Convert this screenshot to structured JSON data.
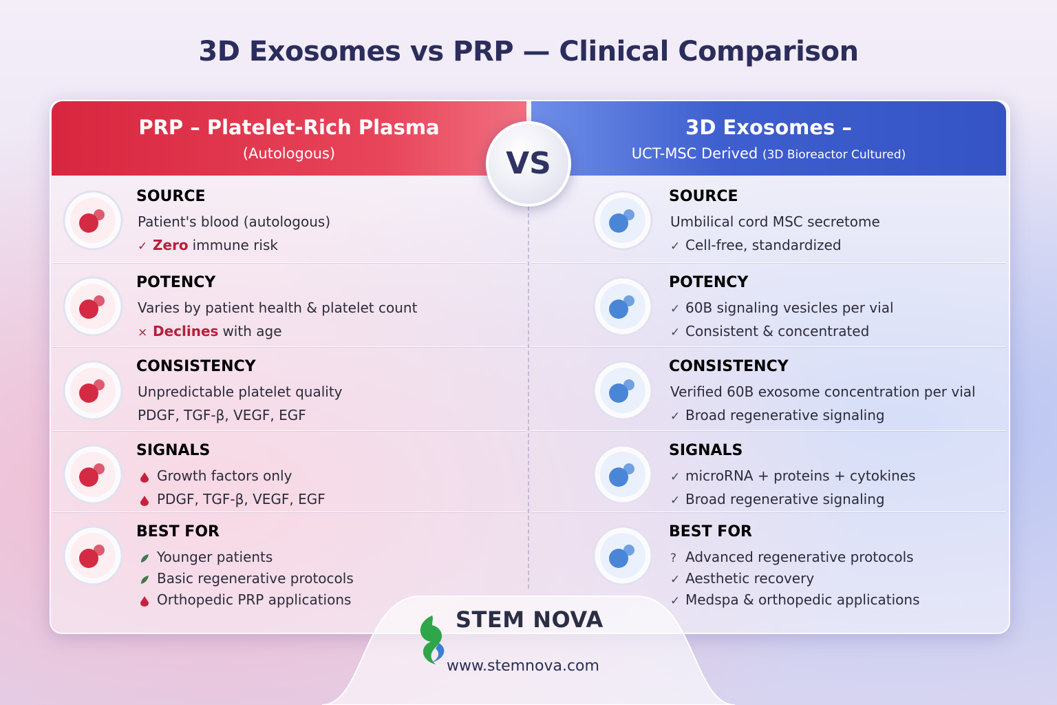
{
  "title": "3D Exosomes vs PRP — Clinical Comparison",
  "vs": "VS",
  "left": {
    "title": "PRP – Platelet-Rich Plasma",
    "subtitle": "(Autologous)",
    "rows": [
      {
        "label": "SOURCE",
        "lines": [
          {
            "text": "Patient's blood (autologous)"
          },
          {
            "mark": "✓",
            "emphasis": "Zero",
            "text": "immune risk"
          }
        ]
      },
      {
        "label": "POTENCY",
        "lines": [
          {
            "text": "Varies by patient health & platelet count"
          },
          {
            "mark": "×",
            "emphasis": "Declines",
            "text": "with age"
          }
        ]
      },
      {
        "label": "CONSISTENCY",
        "lines": [
          {
            "text": "Unpredictable platelet quality"
          },
          {
            "text": "PDGF, TGF-β, VEGF, EGF"
          }
        ]
      },
      {
        "label": "SIGNALS",
        "lines": [
          {
            "text": "Growth factors only"
          },
          {
            "text": "PDGF, TGF-β, VEGF, EGF"
          }
        ]
      },
      {
        "label": "BEST FOR",
        "lines": [
          {
            "text": "Younger patients"
          },
          {
            "text": "Basic regenerative protocols"
          },
          {
            "text": "Orthopedic PRP applications"
          }
        ]
      }
    ]
  },
  "right": {
    "title": "3D Exosomes –",
    "subtitle": "UCT-MSC Derived",
    "subtitle_note": "(3D Bioreactor Cultured)",
    "rows": [
      {
        "label": "SOURCE",
        "lines": [
          {
            "text": "Umbilical cord MSC secretome"
          },
          {
            "mark": "✓",
            "text": "Cell-free, standardized"
          }
        ]
      },
      {
        "label": "POTENCY",
        "lines": [
          {
            "mark": "✓",
            "text": "60B signaling vesicles per vial"
          },
          {
            "mark": "✓",
            "text": "Consistent & concentrated"
          }
        ]
      },
      {
        "label": "CONSISTENCY",
        "lines": [
          {
            "text": "Verified 60B exosome concentration per vial"
          },
          {
            "mark": "✓",
            "text": "Broad regenerative signaling"
          }
        ]
      },
      {
        "label": "SIGNALS",
        "lines": [
          {
            "mark": "✓",
            "text": "microRNA + proteins + cytokines"
          },
          {
            "mark": "✓",
            "text": "Broad regenerative signaling"
          }
        ]
      },
      {
        "label": "BEST FOR",
        "lines": [
          {
            "mark": "?",
            "text": "Advanced regenerative  protocols"
          },
          {
            "mark": "✓",
            "text": "Aesthetic recovery"
          },
          {
            "mark": "✓",
            "text": "Medspa & orthopedic applications"
          }
        ]
      }
    ]
  },
  "brand": {
    "name": "STEM NOVA",
    "url": "www.stemnova.com"
  }
}
